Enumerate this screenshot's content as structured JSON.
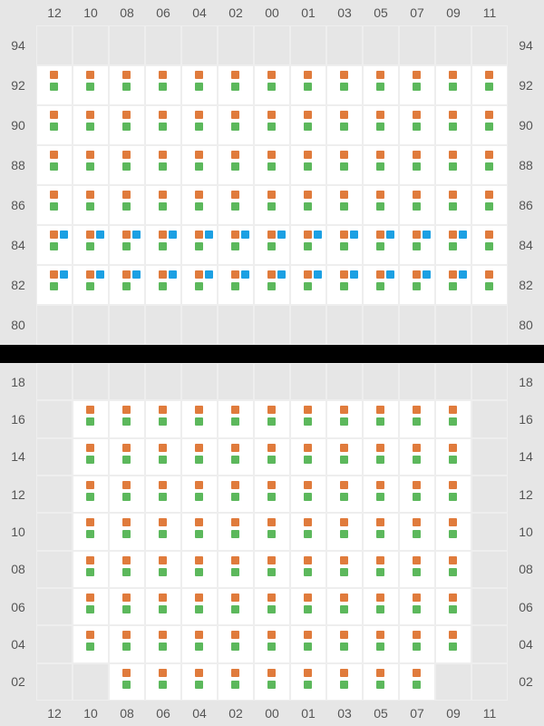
{
  "colors": {
    "orange": "#e07b3c",
    "green": "#5cb85c",
    "blue": "#1ca0e3",
    "cell_gray": "#e6e6e6",
    "cell_white": "#ffffff",
    "text": "#555555",
    "page_bg": "#000000"
  },
  "columns": [
    "12",
    "10",
    "08",
    "06",
    "04",
    "02",
    "00",
    "01",
    "03",
    "05",
    "07",
    "09",
    "11"
  ],
  "top_panel": {
    "row_labels": [
      "94",
      "92",
      "90",
      "88",
      "86",
      "84",
      "82",
      "80"
    ],
    "rows": [
      {
        "label": "94",
        "cells": [
          "gray",
          "gray",
          "gray",
          "gray",
          "gray",
          "gray",
          "gray",
          "gray",
          "gray",
          "gray",
          "gray",
          "gray",
          "gray"
        ]
      },
      {
        "label": "92",
        "cells": [
          "og",
          "og",
          "og",
          "og",
          "og",
          "og",
          "og",
          "og",
          "og",
          "og",
          "og",
          "og",
          "og"
        ]
      },
      {
        "label": "90",
        "cells": [
          "og",
          "og",
          "og",
          "og",
          "og",
          "og",
          "og",
          "og",
          "og",
          "og",
          "og",
          "og",
          "og"
        ]
      },
      {
        "label": "88",
        "cells": [
          "og",
          "og",
          "og",
          "og",
          "og",
          "og",
          "og",
          "og",
          "og",
          "og",
          "og",
          "og",
          "og"
        ]
      },
      {
        "label": "86",
        "cells": [
          "og",
          "og",
          "og",
          "og",
          "og",
          "og",
          "og",
          "og",
          "og",
          "og",
          "og",
          "og",
          "og"
        ]
      },
      {
        "label": "84",
        "cells": [
          "ogb",
          "ogb",
          "ogb",
          "ogb",
          "ogb",
          "ogb",
          "ogb",
          "ogb",
          "ogb",
          "ogb",
          "ogb",
          "ogb",
          "og"
        ]
      },
      {
        "label": "82",
        "cells": [
          "ogb",
          "ogb",
          "ogb",
          "ogb",
          "ogb",
          "ogb",
          "ogb",
          "ogb",
          "ogb",
          "ogb",
          "ogb",
          "ogb",
          "og"
        ]
      },
      {
        "label": "80",
        "cells": [
          "gray",
          "gray",
          "gray",
          "gray",
          "gray",
          "gray",
          "gray",
          "gray",
          "gray",
          "gray",
          "gray",
          "gray",
          "gray"
        ]
      }
    ]
  },
  "bottom_panel": {
    "row_labels": [
      "18",
      "16",
      "14",
      "12",
      "10",
      "08",
      "06",
      "04",
      "02"
    ],
    "rows": [
      {
        "label": "18",
        "cells": [
          "gray",
          "gray",
          "gray",
          "gray",
          "gray",
          "gray",
          "gray",
          "gray",
          "gray",
          "gray",
          "gray",
          "gray",
          "gray"
        ]
      },
      {
        "label": "16",
        "cells": [
          "gray",
          "og",
          "og",
          "og",
          "og",
          "og",
          "og",
          "og",
          "og",
          "og",
          "og",
          "og",
          "gray"
        ]
      },
      {
        "label": "14",
        "cells": [
          "gray",
          "og",
          "og",
          "og",
          "og",
          "og",
          "og",
          "og",
          "og",
          "og",
          "og",
          "og",
          "gray"
        ]
      },
      {
        "label": "12",
        "cells": [
          "gray",
          "og",
          "og",
          "og",
          "og",
          "og",
          "og",
          "og",
          "og",
          "og",
          "og",
          "og",
          "gray"
        ]
      },
      {
        "label": "10",
        "cells": [
          "gray",
          "og",
          "og",
          "og",
          "og",
          "og",
          "og",
          "og",
          "og",
          "og",
          "og",
          "og",
          "gray"
        ]
      },
      {
        "label": "08",
        "cells": [
          "gray",
          "og",
          "og",
          "og",
          "og",
          "og",
          "og",
          "og",
          "og",
          "og",
          "og",
          "og",
          "gray"
        ]
      },
      {
        "label": "06",
        "cells": [
          "gray",
          "og",
          "og",
          "og",
          "og",
          "og",
          "og",
          "og",
          "og",
          "og",
          "og",
          "og",
          "gray"
        ]
      },
      {
        "label": "04",
        "cells": [
          "gray",
          "og",
          "og",
          "og",
          "og",
          "og",
          "og",
          "og",
          "og",
          "og",
          "og",
          "og",
          "gray"
        ]
      },
      {
        "label": "02",
        "cells": [
          "gray",
          "gray",
          "og",
          "og",
          "og",
          "og",
          "og",
          "og",
          "og",
          "og",
          "og",
          "gray",
          "gray"
        ]
      }
    ]
  }
}
